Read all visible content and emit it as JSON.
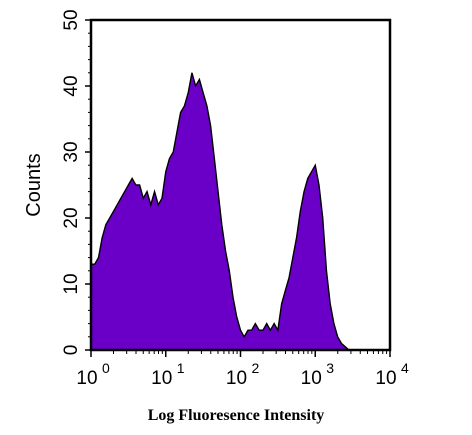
{
  "chart_data": {
    "type": "area",
    "title": "",
    "xlabel": "Log Fluoresence Intensity",
    "ylabel": "Counts",
    "x_scale": "log",
    "xlim": [
      1,
      10000
    ],
    "ylim": [
      0,
      50
    ],
    "x_ticks": [
      {
        "value": 1,
        "base": "10",
        "exp": "0"
      },
      {
        "value": 10,
        "base": "10",
        "exp": "1"
      },
      {
        "value": 100,
        "base": "10",
        "exp": "2"
      },
      {
        "value": 1000,
        "base": "10",
        "exp": "3"
      },
      {
        "value": 10000,
        "base": "10",
        "exp": "4"
      }
    ],
    "y_ticks": [
      "0",
      "10",
      "20",
      "30",
      "40",
      "50"
    ],
    "grid": false,
    "fill_color": "#6a00c8",
    "series": [
      {
        "x": [
          1.0,
          1.12,
          1.26,
          1.41,
          1.58,
          1.78,
          2.0,
          2.24,
          2.51,
          2.82,
          3.16,
          3.55,
          3.98,
          4.47,
          5.01,
          5.62,
          6.31,
          7.08,
          7.94,
          8.91,
          10.0,
          11.2,
          12.6,
          14.1,
          15.8,
          17.8,
          20.0,
          22.4,
          25.1,
          28.2,
          31.6,
          35.5,
          39.8,
          44.7,
          50.1,
          56.2,
          63.1,
          70.8,
          79.4,
          89.1,
          100,
          112,
          126,
          141,
          158,
          178,
          200,
          224,
          251,
          282,
          316,
          355,
          398,
          447,
          501,
          562,
          631,
          708,
          794,
          891,
          1000,
          1122,
          1259,
          1413,
          1585,
          1778,
          1995,
          2239,
          2512,
          2818,
          3162,
          10000
        ],
        "y": [
          13,
          13,
          14,
          17,
          19,
          20,
          21,
          22,
          23,
          24,
          25,
          26,
          25,
          25,
          23,
          24,
          22,
          24,
          22,
          23,
          27,
          29,
          30,
          33,
          36,
          37,
          39,
          42,
          40,
          41,
          39,
          37,
          34,
          29,
          24,
          19,
          15,
          12,
          8,
          5,
          3,
          2,
          3,
          3,
          4,
          3,
          3,
          4,
          3,
          4,
          3,
          7,
          9,
          11,
          14,
          17,
          21,
          24,
          26,
          27,
          28,
          25,
          20,
          12,
          7,
          4,
          2,
          1,
          0.5,
          0,
          0,
          0
        ]
      }
    ]
  }
}
